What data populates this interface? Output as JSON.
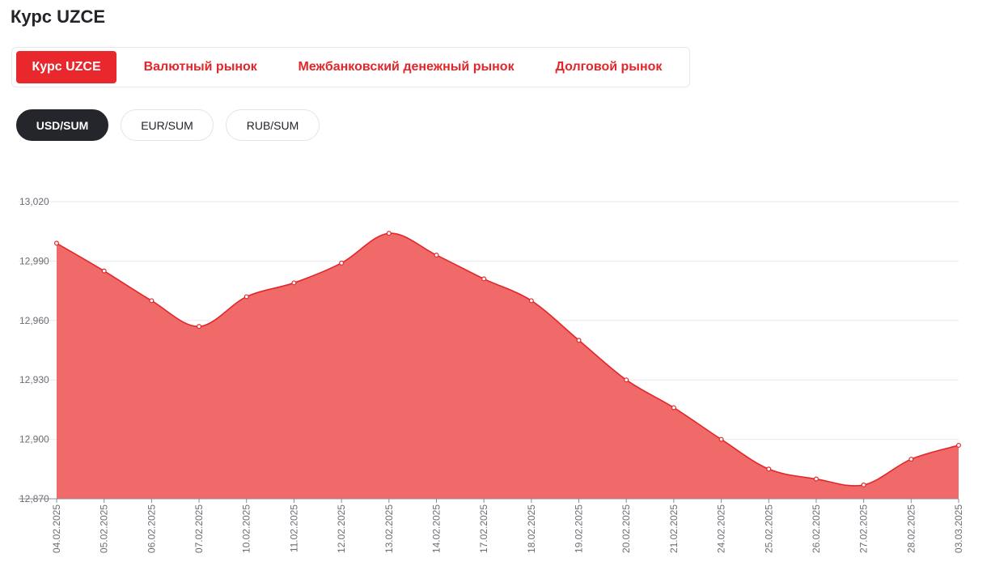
{
  "page": {
    "title": "Курс UZCE"
  },
  "tabs": [
    {
      "label": "Курс UZCE",
      "active": true
    },
    {
      "label": "Валютный рынок",
      "active": false
    },
    {
      "label": "Межбанковский денежный рынок",
      "active": false
    },
    {
      "label": "Долговой рынок",
      "active": false
    }
  ],
  "pairs": [
    {
      "label": "USD/SUM",
      "active": true
    },
    {
      "label": "EUR/SUM",
      "active": false
    },
    {
      "label": "RUB/SUM",
      "active": false
    }
  ],
  "colors": {
    "accent": "#e8282c",
    "line": "#e3262a",
    "area": "#f06a6a",
    "grid": "#e9e9ee",
    "axis": "#6b6d74",
    "dark_pill": "#25262b"
  },
  "chart_data": {
    "type": "area",
    "title": "",
    "xlabel": "",
    "ylabel": "",
    "ylim": [
      12870,
      13020
    ],
    "y_ticks": [
      "12,870",
      "12,900",
      "12,930",
      "12,960",
      "12,990",
      "13,020"
    ],
    "y_tick_values": [
      12870,
      12900,
      12930,
      12960,
      12990,
      13020
    ],
    "grid": true,
    "series": [
      {
        "name": "USD/SUM",
        "x": [
          "04.02.2025",
          "05.02.2025",
          "06.02.2025",
          "07.02.2025",
          "10.02.2025",
          "11.02.2025",
          "12.02.2025",
          "13.02.2025",
          "14.02.2025",
          "17.02.2025",
          "18.02.2025",
          "19.02.2025",
          "20.02.2025",
          "21.02.2025",
          "24.02.2025",
          "25.02.2025",
          "26.02.2025",
          "27.02.2025",
          "28.02.2025",
          "03.03.2025"
        ],
        "values": [
          12999,
          12985,
          12970,
          12957,
          12972,
          12979,
          12989,
          13004,
          12993,
          12981,
          12970,
          12950,
          12930,
          12916,
          12900,
          12885,
          12880,
          12877,
          12890,
          12897
        ]
      }
    ]
  }
}
